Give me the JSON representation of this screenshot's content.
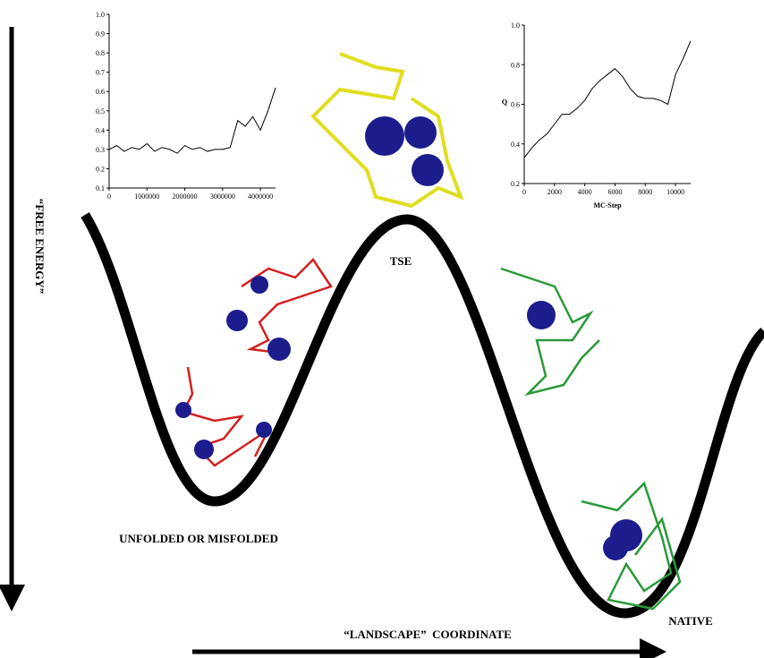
{
  "labels": {
    "y_axis": "“FREE ENERGY”",
    "x_axis": "“LANDSCAPE”  COORDINATE",
    "tse": "TSE",
    "unfolded": "UNFOLDED OR MISFOLDED",
    "native": "NATIVE"
  },
  "chart_data": [
    {
      "type": "line",
      "color": "#000000",
      "x": [
        0,
        200000,
        400000,
        600000,
        800000,
        1000000,
        1200000,
        1400000,
        1600000,
        1800000,
        2000000,
        2200000,
        2400000,
        2600000,
        2800000,
        3000000,
        3200000,
        3400000,
        3600000,
        3800000,
        4000000,
        4200000,
        4400000
      ],
      "values": [
        0.3,
        0.32,
        0.29,
        0.31,
        0.3,
        0.33,
        0.29,
        0.31,
        0.3,
        0.28,
        0.32,
        0.3,
        0.31,
        0.29,
        0.3,
        0.3,
        0.31,
        0.45,
        0.42,
        0.47,
        0.4,
        0.5,
        0.62
      ],
      "xlim": [
        0,
        4400000
      ],
      "ylim": [
        0.1,
        1.0
      ],
      "xticks": [
        0,
        1000000,
        2000000,
        3000000,
        4000000
      ],
      "yticks": [
        0.1,
        0.2,
        0.3,
        0.4,
        0.5,
        0.6,
        0.7,
        0.8,
        0.9,
        {
          "value": 1,
          "label": "1.0"
        }
      ]
    },
    {
      "type": "line",
      "color": "#000000",
      "x_label": "MC-Step",
      "y_label": "Q",
      "x": [
        0,
        500,
        1000,
        1500,
        2000,
        2500,
        3000,
        3500,
        4000,
        4500,
        5000,
        5500,
        6000,
        6500,
        7000,
        7500,
        8000,
        8500,
        9000,
        9500,
        10000,
        10500,
        11000
      ],
      "values": [
        0.33,
        0.38,
        0.42,
        0.45,
        0.5,
        0.55,
        0.55,
        0.58,
        0.62,
        0.68,
        0.72,
        0.75,
        0.78,
        0.74,
        0.68,
        0.64,
        0.63,
        0.63,
        0.62,
        0.6,
        0.75,
        0.83,
        0.92
      ],
      "xlim": [
        0,
        11000
      ],
      "ylim": [
        0.2,
        1.0
      ],
      "xticks": [
        0,
        2000,
        4000,
        6000,
        8000,
        10000
      ],
      "yticks": [
        0.2,
        0.4,
        0.6,
        0.8,
        {
          "value": 1,
          "label": "1.0"
        }
      ]
    }
  ]
}
